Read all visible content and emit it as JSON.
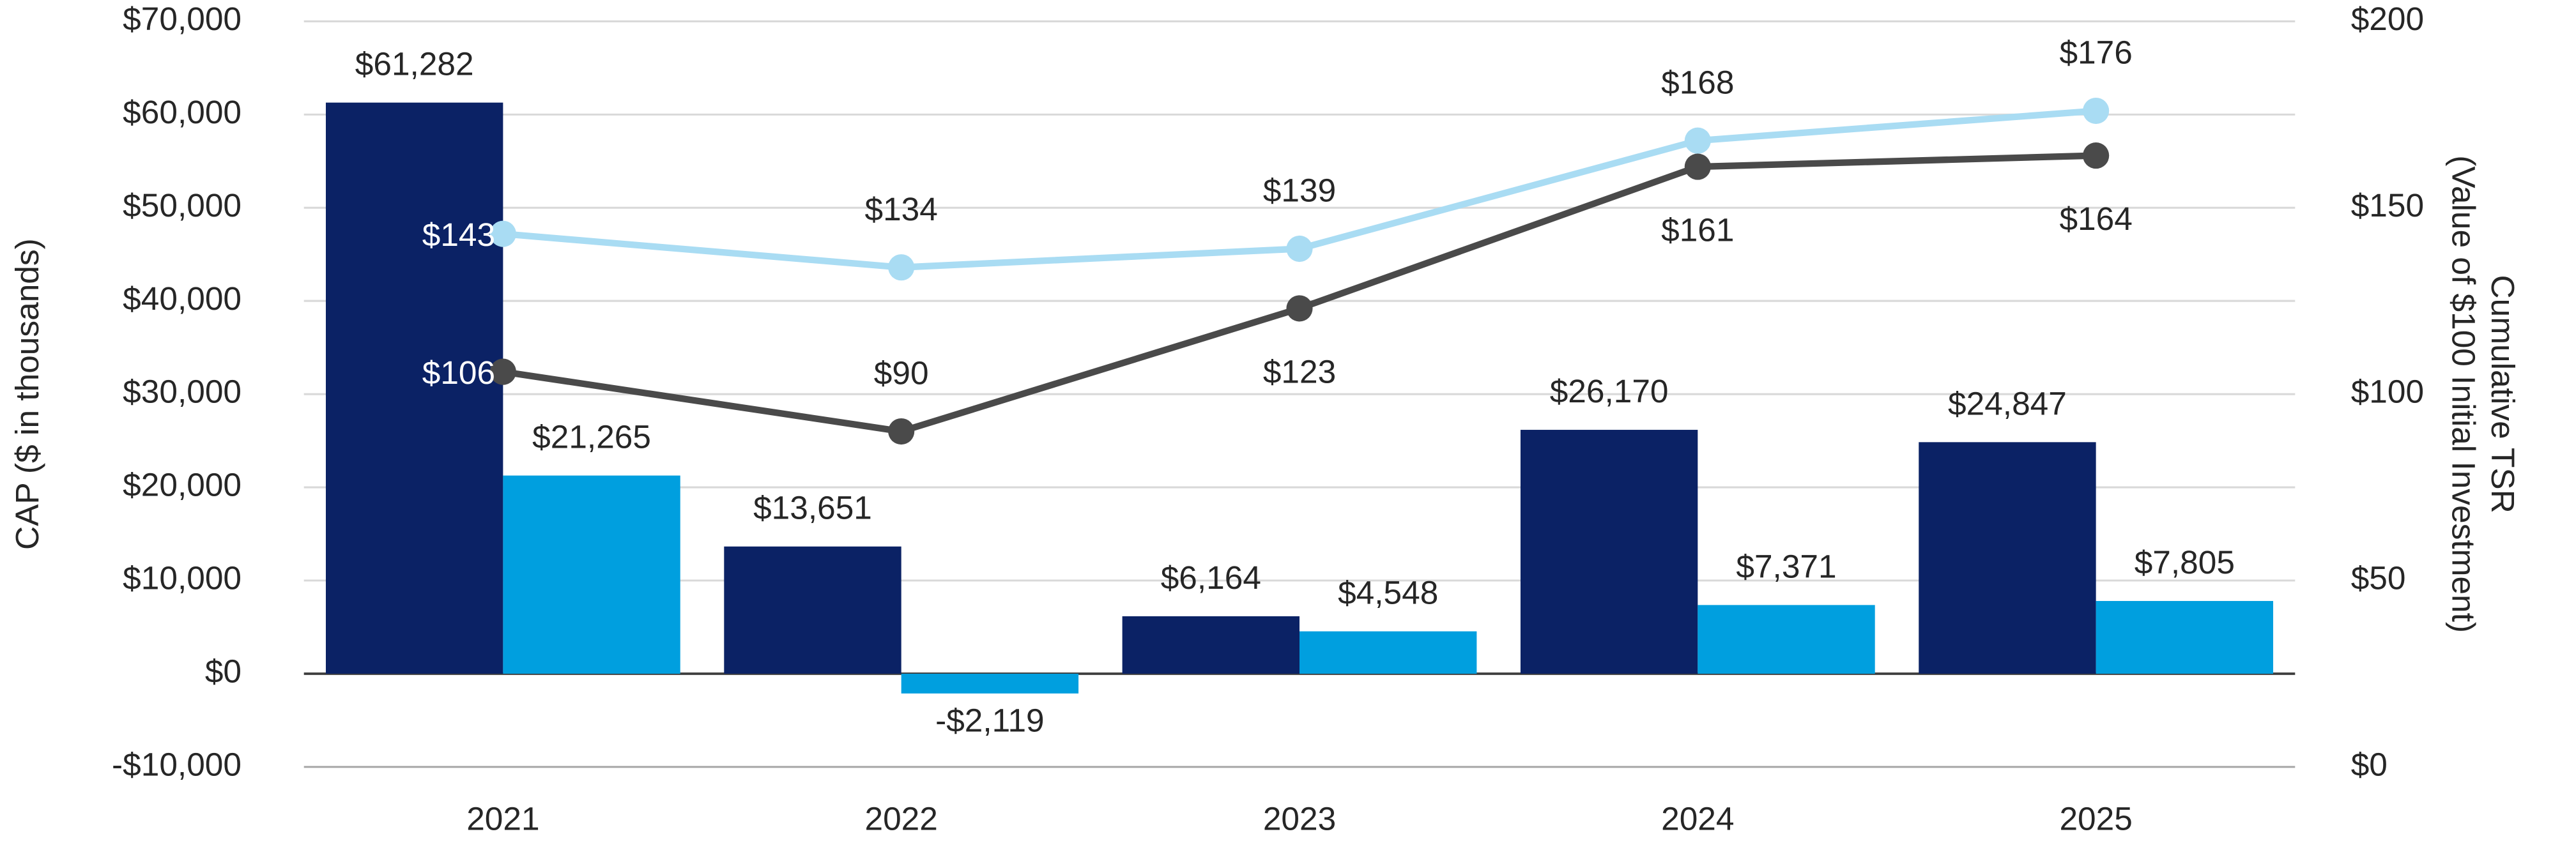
{
  "chart_data": {
    "type": "bar",
    "categories": [
      "2021",
      "2022",
      "2023",
      "2024",
      "2025"
    ],
    "y_label": "CAP ($ in thousands)",
    "y2_label": [
      "Cumulative TSR",
      "(Value of $100 Initial Investment)"
    ],
    "ylim": [
      -10000,
      70000
    ],
    "yticks": [
      {
        "value": -10000,
        "label": "-$10,000"
      },
      {
        "value": 0,
        "label": "$0"
      },
      {
        "value": 10000,
        "label": "$10,000"
      },
      {
        "value": 20000,
        "label": "$20,000"
      },
      {
        "value": 30000,
        "label": "$30,000"
      },
      {
        "value": 40000,
        "label": "$40,000"
      },
      {
        "value": 50000,
        "label": "$50,000"
      },
      {
        "value": 60000,
        "label": "$60,000"
      },
      {
        "value": 70000,
        "label": "$70,000"
      }
    ],
    "y2lim": [
      0,
      200
    ],
    "y2ticks": [
      {
        "value": 0,
        "label": "$0"
      },
      {
        "value": 50,
        "label": "$50"
      },
      {
        "value": 100,
        "label": "$100"
      },
      {
        "value": 150,
        "label": "$150"
      },
      {
        "value": 200,
        "label": "$200"
      }
    ],
    "grid": true,
    "series": [
      {
        "type": "bar",
        "color": "#0b2265",
        "values": [
          61282,
          13651,
          6164,
          26170,
          24847
        ],
        "value_labels": [
          "$61,282",
          "$13,651",
          "$6,164",
          "$26,170",
          "$24,847"
        ]
      },
      {
        "type": "bar",
        "color": "#009fdf",
        "values": [
          21265,
          -2119,
          4548,
          7371,
          7805
        ],
        "value_labels": [
          "$21,265",
          "-$2,119",
          "$4,548",
          "$7,371",
          "$7,805"
        ]
      },
      {
        "type": "line",
        "axis": "y2",
        "color": "#a9dcf3",
        "values": [
          143,
          134,
          139,
          168,
          176
        ],
        "value_labels": [
          "$143",
          "$134",
          "$139",
          "$168",
          "$176"
        ]
      },
      {
        "type": "line",
        "axis": "y2",
        "color": "#4a4a4a",
        "values": [
          106,
          90,
          123,
          161,
          164
        ],
        "value_labels": [
          "$106",
          "$90",
          "$123",
          "$161",
          "$164"
        ]
      }
    ]
  }
}
